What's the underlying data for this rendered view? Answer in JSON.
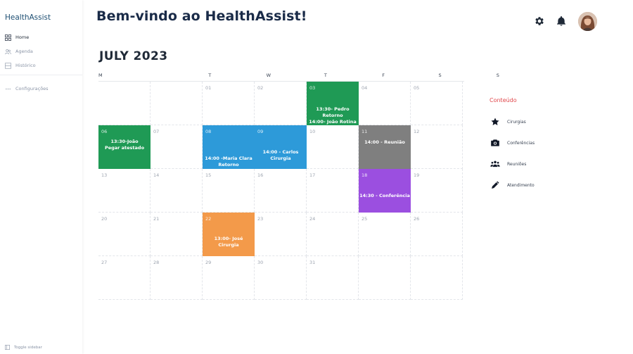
{
  "app": {
    "brand": "HealthAssist"
  },
  "sidebar": {
    "items": [
      {
        "label": "Home",
        "icon": "grid-icon",
        "active": true
      },
      {
        "label": "Agenda",
        "icon": "users-icon",
        "active": false
      },
      {
        "label": "Histórico",
        "icon": "list-icon",
        "active": false
      }
    ],
    "config_label": "Configurações",
    "toggle_label": "Toggle sidebar"
  },
  "header": {
    "welcome": "Bem-vindo ao HealthAssist!",
    "icons": [
      "gear-icon",
      "bell-icon"
    ]
  },
  "calendar": {
    "month_label": "JULY 2023",
    "weekdays": [
      "M",
      "T",
      "W",
      "T",
      "F",
      "S",
      "S"
    ],
    "days": {
      "d01": "01",
      "d02": "02",
      "d03": "03",
      "d04": "04",
      "d05": "05",
      "d06": "06",
      "d07": "07",
      "d08": "08",
      "d09": "09",
      "d10": "10",
      "d11": "11",
      "d12": "12",
      "d13": "13",
      "d14": "14",
      "d15": "15",
      "d16": "16",
      "d17": "17",
      "d18": "18",
      "d19": "19",
      "d20": "20",
      "d21": "21",
      "d22": "22",
      "d23": "23",
      "d24": "24",
      "d25": "25",
      "d26": "26",
      "d27": "27",
      "d28": "28",
      "d29": "29",
      "d30": "30",
      "d31": "31"
    },
    "events": {
      "e03": "13:30- Pedro\nRetorno\n14:00- João Rotina",
      "e06": "13:30-João\nPegar atestado",
      "e08": "14:00 -Maria Clara\nRetorno",
      "e09": "14:00 - Carlos\nCirurgia",
      "e11": "14:00 - Reunião",
      "e18": "14:30 - Conferência",
      "e22": "13:00- José\nCirurgia"
    },
    "colors": {
      "green": "#1f9a55",
      "blue": "#2d9ad9",
      "gray": "#7f7f7f",
      "purple": "#9b4fe0",
      "orange": "#f39a4a"
    }
  },
  "panel": {
    "title": "Conteúdo",
    "items": [
      {
        "label": "Cirurgias",
        "icon": "star-icon"
      },
      {
        "label": "Conferências",
        "icon": "camera-icon"
      },
      {
        "label": "Reuniões",
        "icon": "group-icon"
      },
      {
        "label": "Atendimento",
        "icon": "pen-icon"
      }
    ]
  }
}
